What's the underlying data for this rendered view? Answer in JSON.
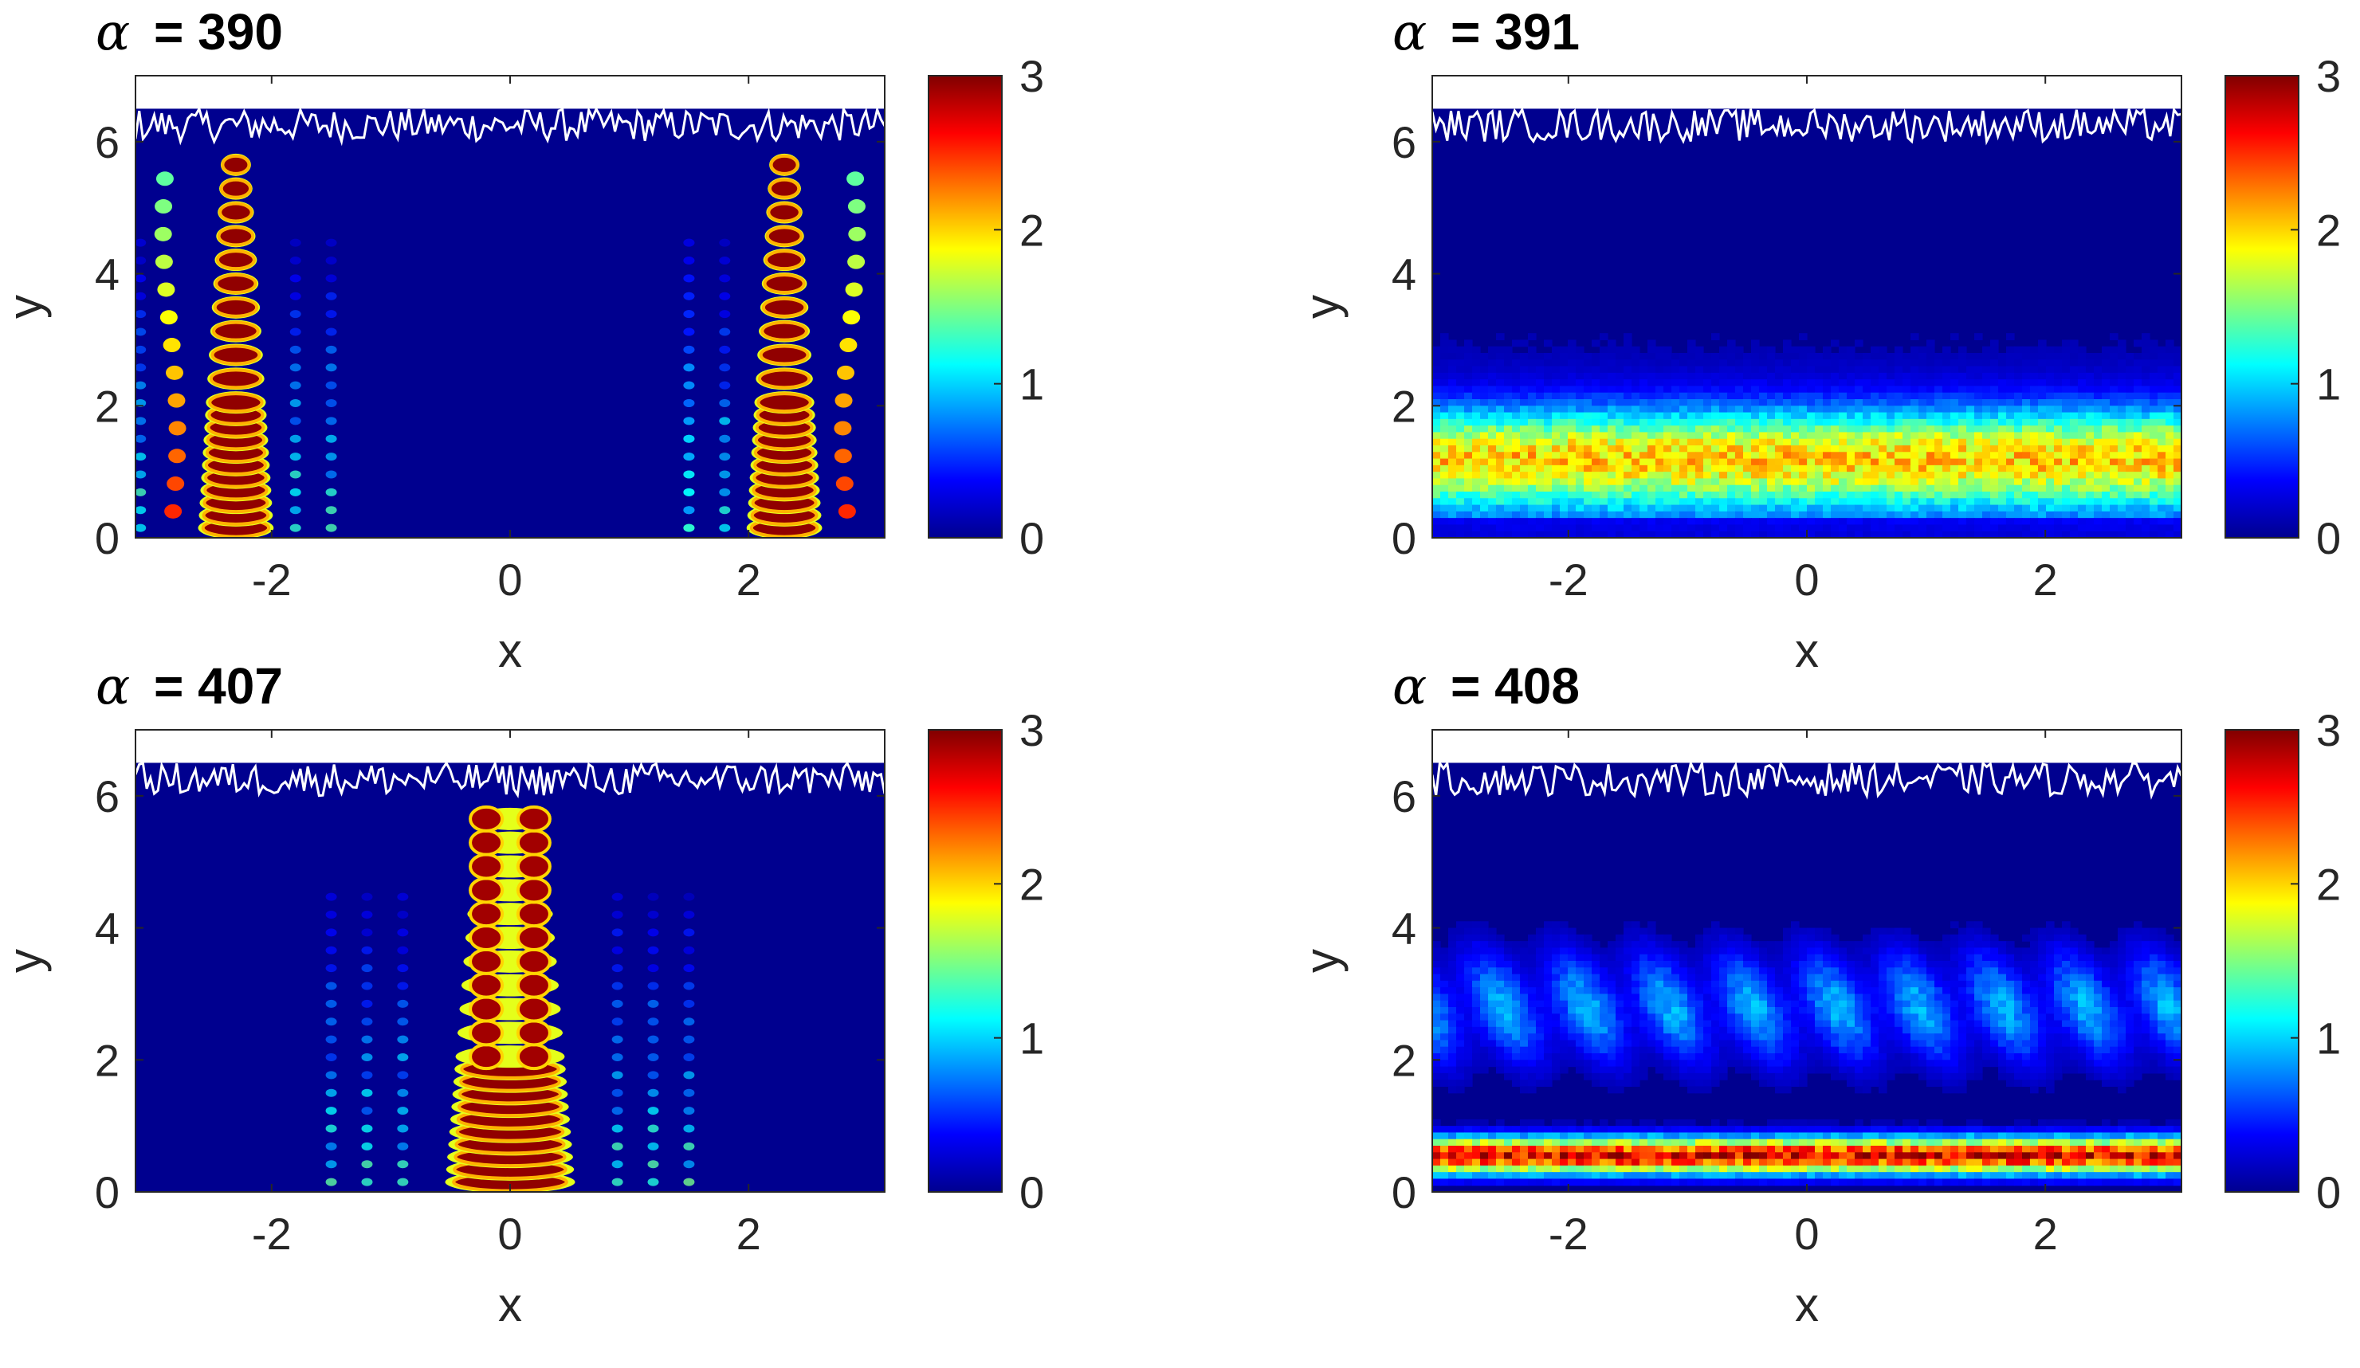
{
  "colors": {
    "colormap": "jet",
    "background": "#00008f",
    "boundary_line": "#ffffff",
    "axes": "#262626"
  },
  "chart_data": [
    {
      "type": "heatmap",
      "title_symbol": "α",
      "title_value": "= 390",
      "xlabel": "x",
      "ylabel": "y",
      "xlim": [
        -3.14159,
        3.14159
      ],
      "ylim": [
        0,
        7
      ],
      "xticks": [
        -2,
        0,
        2
      ],
      "xtick_labels": [
        "-2",
        "0",
        "2"
      ],
      "yticks": [
        0,
        2,
        4,
        6
      ],
      "ytick_labels": [
        "0",
        "2",
        "4",
        "6"
      ],
      "colorbar": {
        "range": [
          0,
          3
        ],
        "ticks": [
          0,
          1,
          2,
          3
        ],
        "tick_labels": [
          "0",
          "1",
          "2",
          "3"
        ]
      },
      "pattern": "side_beams",
      "beam_centers_x": [
        -2.3,
        2.3
      ],
      "rough_boundary_y": [
        6.0,
        6.5
      ]
    },
    {
      "type": "heatmap",
      "title_symbol": "α",
      "title_value": "= 391",
      "xlabel": "x",
      "ylabel": "y",
      "xlim": [
        -3.14159,
        3.14159
      ],
      "ylim": [
        0,
        7
      ],
      "xticks": [
        -2,
        0,
        2
      ],
      "xtick_labels": [
        "-2",
        "0",
        "2"
      ],
      "yticks": [
        0,
        2,
        4,
        6
      ],
      "ytick_labels": [
        "0",
        "2",
        "4",
        "6"
      ],
      "colorbar": {
        "range": [
          0,
          3
        ],
        "ticks": [
          0,
          1,
          2,
          3
        ],
        "tick_labels": [
          "0",
          "1",
          "2",
          "3"
        ]
      },
      "pattern": "diffuse_band",
      "band_center_y": 1.2,
      "band_peak_value": 1.8,
      "rough_boundary_y": [
        6.0,
        6.5
      ]
    },
    {
      "type": "heatmap",
      "title_symbol": "α",
      "title_value": "= 407",
      "xlabel": "x",
      "ylabel": "y",
      "xlim": [
        -3.14159,
        3.14159
      ],
      "ylim": [
        0,
        7
      ],
      "xticks": [
        -2,
        0,
        2
      ],
      "xtick_labels": [
        "-2",
        "0",
        "2"
      ],
      "yticks": [
        0,
        2,
        4,
        6
      ],
      "ytick_labels": [
        "0",
        "2",
        "4",
        "6"
      ],
      "colorbar": {
        "range": [
          0,
          3
        ],
        "ticks": [
          0,
          1,
          2,
          3
        ],
        "tick_labels": [
          "0",
          "1",
          "2",
          "3"
        ]
      },
      "pattern": "central_beam",
      "beam_centers_x": [
        0
      ],
      "rough_boundary_y": [
        6.0,
        6.5
      ]
    },
    {
      "type": "heatmap",
      "title_symbol": "α",
      "title_value": "= 408",
      "xlabel": "x",
      "ylabel": "y",
      "xlim": [
        -3.14159,
        3.14159
      ],
      "ylim": [
        0,
        7
      ],
      "xticks": [
        -2,
        0,
        2
      ],
      "xtick_labels": [
        "-2",
        "0",
        "2"
      ],
      "yticks": [
        0,
        2,
        4,
        6
      ],
      "ytick_labels": [
        "0",
        "2",
        "4",
        "6"
      ],
      "colorbar": {
        "range": [
          0,
          3
        ],
        "ticks": [
          0,
          1,
          2,
          3
        ],
        "tick_labels": [
          "0",
          "1",
          "2",
          "3"
        ]
      },
      "pattern": "surface_band",
      "band_center_y": 0.55,
      "band_peak_value": 2.7,
      "rough_boundary_y": [
        6.0,
        6.5
      ]
    }
  ]
}
